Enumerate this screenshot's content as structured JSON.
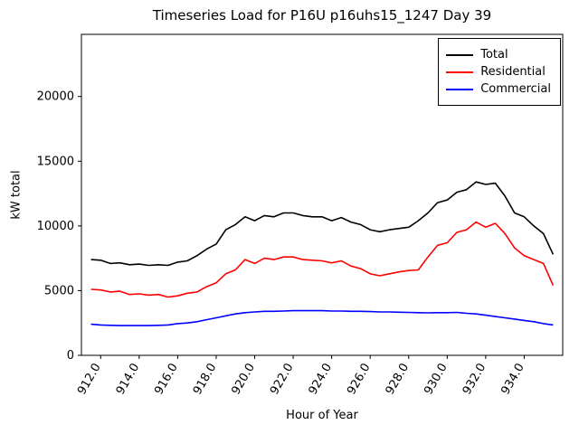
{
  "title": "Timeseries Load for P16U p16uhs15_1247  Day 39",
  "chart_data": {
    "type": "line",
    "title": "Timeseries Load for P16U p16uhs15_1247  Day 39",
    "xlabel": "Hour of Year",
    "ylabel": "kW total",
    "xlim": [
      911,
      936
    ],
    "ylim": [
      0,
      24800
    ],
    "grid": false,
    "legend_position": "upper right",
    "xticks": [
      912,
      914,
      916,
      918,
      920,
      922,
      924,
      926,
      928,
      930,
      932,
      934
    ],
    "xtick_labels": [
      "912.0",
      "914.0",
      "916.0",
      "918.0",
      "920.0",
      "922.0",
      "924.0",
      "926.0",
      "928.0",
      "930.0",
      "932.0",
      "934.0"
    ],
    "yticks": [
      0,
      5000,
      10000,
      15000,
      20000
    ],
    "ytick_labels": [
      "0",
      "5000",
      "10000",
      "15000",
      "20000"
    ],
    "x": [
      911.5,
      912.0,
      912.5,
      913.0,
      913.5,
      914.0,
      914.5,
      915.0,
      915.5,
      916.0,
      916.5,
      917.0,
      917.5,
      918.0,
      918.5,
      919.0,
      919.5,
      920.0,
      920.5,
      921.0,
      921.5,
      922.0,
      922.5,
      923.0,
      923.5,
      924.0,
      924.5,
      925.0,
      925.5,
      926.0,
      926.5,
      927.0,
      927.5,
      928.0,
      928.5,
      929.0,
      929.5,
      930.0,
      930.5,
      931.0,
      931.5,
      932.0,
      932.5,
      933.0,
      933.5,
      934.0,
      934.5,
      935.0,
      935.5
    ],
    "series": [
      {
        "name": "Total",
        "color": "#000000",
        "values": [
          7400,
          7350,
          7100,
          7150,
          7000,
          7050,
          6950,
          7000,
          6950,
          7200,
          7300,
          7700,
          8200,
          8600,
          9700,
          10100,
          10700,
          10400,
          10800,
          10700,
          11000,
          11000,
          10800,
          10700,
          10700,
          10400,
          10650,
          10300,
          10100,
          9700,
          9550,
          9700,
          9800,
          9900,
          10400,
          11000,
          11800,
          12000,
          12600,
          12800,
          13400,
          13200,
          13300,
          12300,
          11000,
          10700,
          10000,
          9400,
          7800
        ]
      },
      {
        "name": "Residential",
        "color": "#ff0000",
        "values": [
          5100,
          5050,
          4900,
          4950,
          4700,
          4750,
          4650,
          4700,
          4500,
          4600,
          4800,
          4900,
          5300,
          5600,
          6300,
          6600,
          7400,
          7100,
          7500,
          7400,
          7600,
          7600,
          7400,
          7350,
          7300,
          7150,
          7300,
          6900,
          6700,
          6300,
          6150,
          6300,
          6450,
          6550,
          6600,
          7600,
          8500,
          8700,
          9500,
          9700,
          10300,
          9900,
          10200,
          9400,
          8300,
          7700,
          7400,
          7100,
          5400
        ]
      },
      {
        "name": "Commercial",
        "color": "#0000ff",
        "values": [
          2400,
          2350,
          2320,
          2300,
          2300,
          2300,
          2300,
          2320,
          2350,
          2450,
          2500,
          2600,
          2750,
          2900,
          3050,
          3200,
          3300,
          3350,
          3400,
          3400,
          3420,
          3450,
          3450,
          3450,
          3450,
          3420,
          3420,
          3400,
          3400,
          3380,
          3350,
          3350,
          3330,
          3320,
          3300,
          3280,
          3300,
          3300,
          3320,
          3250,
          3200,
          3100,
          3000,
          2900,
          2800,
          2700,
          2600,
          2450,
          2350
        ]
      }
    ]
  }
}
